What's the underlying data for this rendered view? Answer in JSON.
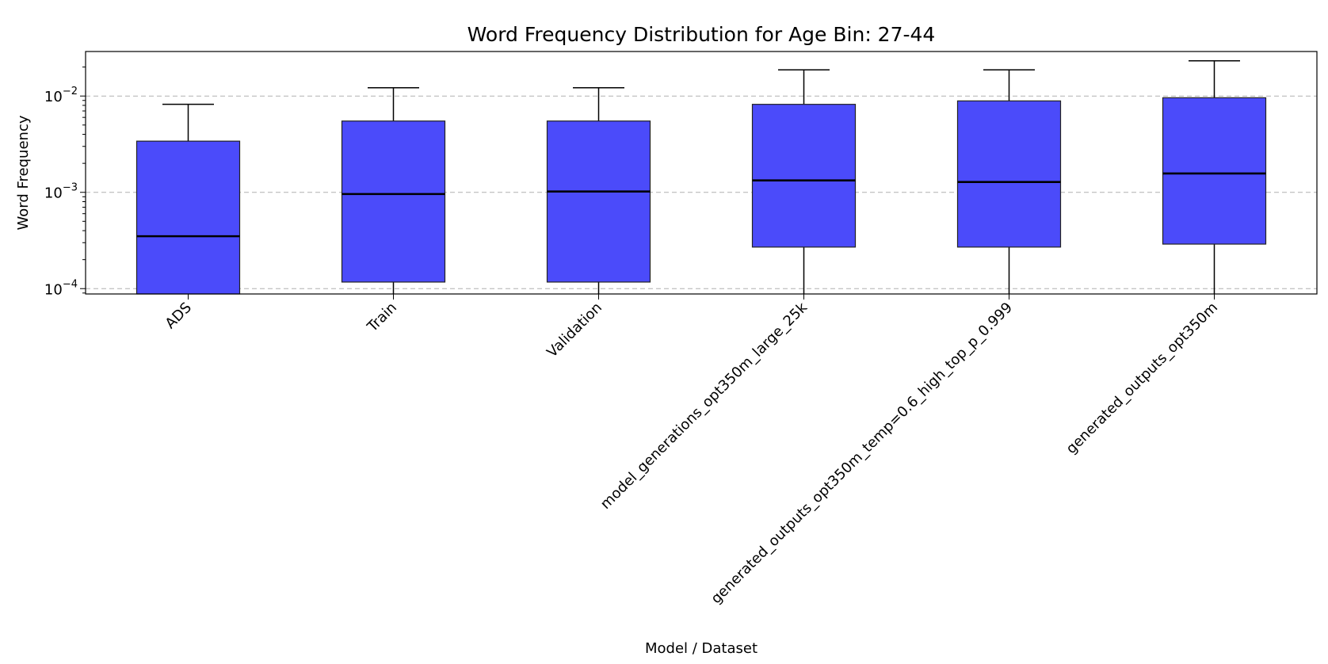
{
  "chart_data": {
    "type": "boxplot",
    "title": "Word Frequency Distribution for Age Bin: 27-44",
    "xlabel": "Model / Dataset",
    "ylabel": "Word Frequency",
    "yscale": "log",
    "ylim": [
      8.8e-05,
      0.029
    ],
    "yticks": [
      {
        "value": 0.0001,
        "base": "10",
        "exp": "−4"
      },
      {
        "value": 0.001,
        "base": "10",
        "exp": "−3"
      },
      {
        "value": 0.01,
        "base": "10",
        "exp": "−2"
      }
    ],
    "grid": "y",
    "box_color": "#4b4bfa",
    "categories": [
      "ADS",
      "Train",
      "Validation",
      "model_generations_opt350m_large_25k",
      "generated_outputs_opt350m_temp=0.6_high_top_p_0.999",
      "generated_outputs_opt350m"
    ],
    "boxes": [
      {
        "whisker_low": 8e-05,
        "q1": 8e-05,
        "median": 0.00035,
        "q3": 0.0034,
        "whisker_high": 0.0082
      },
      {
        "whisker_low": 8e-05,
        "q1": 0.000117,
        "median": 0.00096,
        "q3": 0.0055,
        "whisker_high": 0.0122
      },
      {
        "whisker_low": 8e-05,
        "q1": 0.000117,
        "median": 0.00102,
        "q3": 0.0055,
        "whisker_high": 0.0122
      },
      {
        "whisker_low": 8e-05,
        "q1": 0.00027,
        "median": 0.00133,
        "q3": 0.0082,
        "whisker_high": 0.0187
      },
      {
        "whisker_low": 8e-05,
        "q1": 0.00027,
        "median": 0.00128,
        "q3": 0.0089,
        "whisker_high": 0.0187
      },
      {
        "whisker_low": 8e-05,
        "q1": 0.00029,
        "median": 0.00157,
        "q3": 0.0096,
        "whisker_high": 0.0232
      }
    ]
  }
}
